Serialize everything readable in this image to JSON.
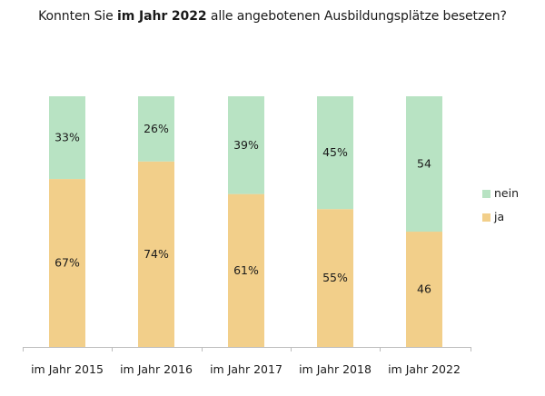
{
  "chart_data": {
    "type": "bar",
    "stacked": true,
    "title_prefix": "Konnten Sie ",
    "title_bold": "im Jahr 2022",
    "title_suffix": " alle angebotenen Ausbildungsplätze besetzen?",
    "categories": [
      "im Jahr 2015",
      "im Jahr 2016",
      "im Jahr 2017",
      "im Jahr 2018",
      "im Jahr 2022"
    ],
    "series": [
      {
        "name": "ja",
        "values": [
          67,
          74,
          61,
          55,
          46
        ],
        "labels": [
          "67%",
          "74%",
          "61%",
          "55%",
          "46"
        ],
        "color": "#f2cf8a"
      },
      {
        "name": "nein",
        "values": [
          33,
          26,
          39,
          45,
          54
        ],
        "labels": [
          "33%",
          "26%",
          "39%",
          "45%",
          "54"
        ],
        "color": "#b8e3c3"
      }
    ],
    "legend_order": [
      "nein",
      "ja"
    ],
    "legend_position": "right",
    "ylim": [
      0,
      100
    ],
    "grid": false
  }
}
